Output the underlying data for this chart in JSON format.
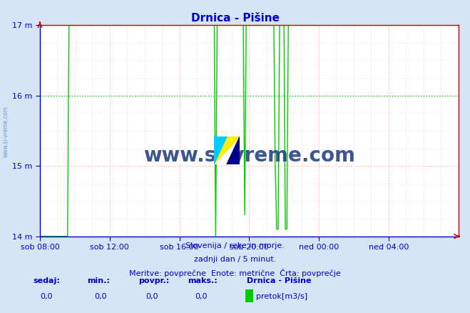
{
  "title": "Drnica - Pišine",
  "outer_bg": "#d5e5f5",
  "plot_bg": "#ffffff",
  "line_color": "#00cc00",
  "spine_left_color": "#0000cc",
  "spine_bottom_color": "#0000cc",
  "spine_top_color": "#cc0000",
  "spine_right_color": "#cc0000",
  "grid_pink_color": "#ffaaaa",
  "grid_green_color": "#00cc00",
  "yticks": [
    14,
    15,
    16,
    17
  ],
  "ytick_labels": [
    "14 m",
    "15 m",
    "16 m",
    "17 m"
  ],
  "xtick_positions": [
    0,
    48,
    96,
    144,
    192,
    240
  ],
  "xtick_labels": [
    "sob 08:00",
    "sob 12:00",
    "sob 16:00",
    "sob 20:00",
    "ned 00:00",
    "ned 04:00"
  ],
  "tick_color": "#0000cc",
  "title_color": "#0000cc",
  "watermark_text": "www.si-vreme.com",
  "watermark_color": "#1a3a7a",
  "side_label": "www.si-vreme.com",
  "footer1": "Slovenija / reke in morje.",
  "footer2": "zadnji dan / 5 minut.",
  "footer3": "Meritve: povprečne  Enote: metrične  Črta: povprečje",
  "footer_color": "#0000cc",
  "stat_labels": [
    "sedaj:",
    "min.:",
    "povpr.:",
    "maks.:"
  ],
  "stat_values": [
    "0,0",
    "0,0",
    "0,0",
    "0,0"
  ],
  "legend_title": "Drnica - Pišine",
  "legend_label": "pretok[m3/s]",
  "legend_color": "#00cc00",
  "ylim": [
    14,
    17
  ],
  "xlim": [
    0,
    288
  ],
  "num_points": 288
}
